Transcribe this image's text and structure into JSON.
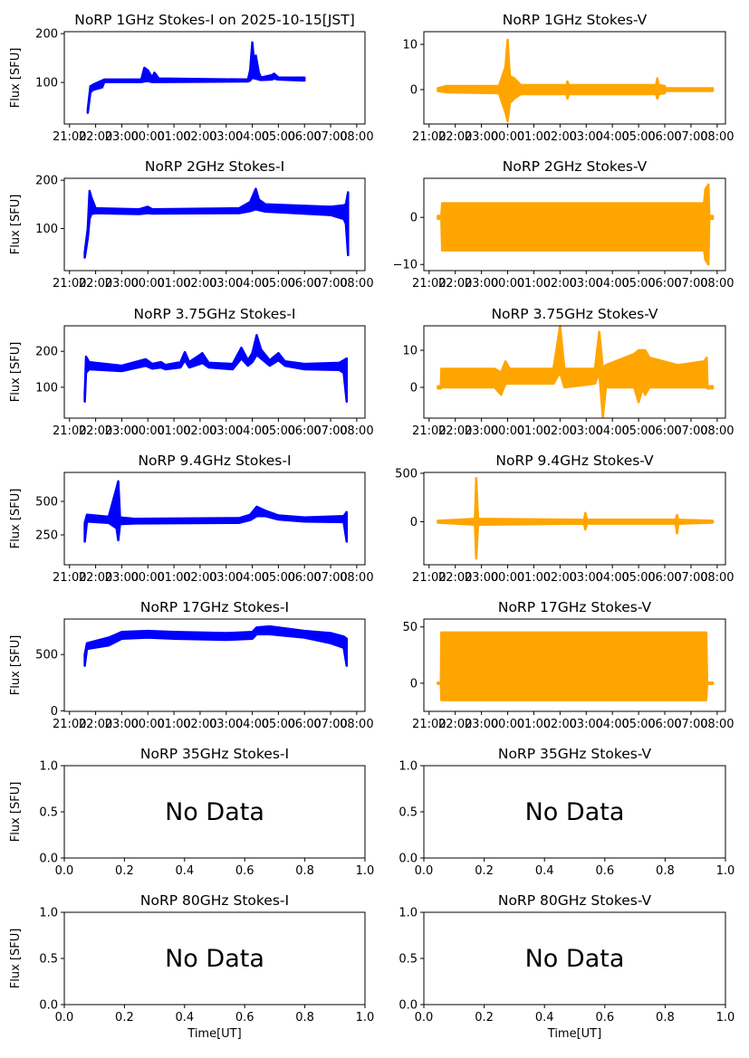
{
  "chart_data": [
    {
      "type": "scatter",
      "title": "NoRP 1GHz Stokes-I on 2025-10-15[JST]",
      "ylabel": "Flux [SFU]",
      "xlabel": "",
      "color": "#0000ff",
      "xlim": [
        "20:48",
        "08:19"
      ],
      "ylim": [
        15,
        204
      ],
      "yticks": [
        "100",
        "200"
      ],
      "ytick_values": [
        100,
        200
      ],
      "xticks": [
        "21:00",
        "22:00",
        "23:00",
        "00:00",
        "01:00",
        "02:00",
        "03:00",
        "04:00",
        "05:00",
        "06:00",
        "07:00",
        "08:00"
      ],
      "envelope": [
        [
          "21:42",
          38,
          44
        ],
        [
          "21:48",
          80,
          92
        ],
        [
          "21:55",
          85,
          96
        ],
        [
          "22:15",
          90,
          104
        ],
        [
          "22:20",
          101,
          106
        ],
        [
          "23:45",
          101,
          106
        ],
        [
          "23:52",
          102,
          130
        ],
        [
          "00:00",
          103,
          125
        ],
        [
          "00:10",
          101,
          110
        ],
        [
          "00:15",
          101,
          120
        ],
        [
          "00:25",
          101,
          108
        ],
        [
          "03:50",
          102,
          106
        ],
        [
          "03:55",
          104,
          125
        ],
        [
          "04:00",
          110,
          182
        ],
        [
          "04:05",
          108,
          130
        ],
        [
          "04:08",
          108,
          155
        ],
        [
          "04:15",
          106,
          120
        ],
        [
          "04:20",
          105,
          110
        ],
        [
          "04:45",
          106,
          115
        ],
        [
          "04:50",
          108,
          118
        ],
        [
          "05:00",
          106,
          110
        ],
        [
          "06:00",
          104,
          110
        ]
      ]
    },
    {
      "type": "scatter",
      "title": "NoRP 1GHz Stokes-V",
      "ylabel": "",
      "xlabel": "",
      "color": "#ffa500",
      "xlim": [
        "20:48",
        "08:19"
      ],
      "ylim": [
        -7.6,
        12.8
      ],
      "yticks": [
        "0",
        "10"
      ],
      "ytick_values": [
        0,
        10
      ],
      "xticks": [
        "21:00",
        "22:00",
        "23:00",
        "00:00",
        "01:00",
        "02:00",
        "03:00",
        "04:00",
        "05:00",
        "06:00",
        "07:00",
        "08:00"
      ],
      "envelope": [
        [
          "21:20",
          -0.3,
          0.3
        ],
        [
          "21:40",
          -0.6,
          0.8
        ],
        [
          "23:40",
          -0.8,
          0.8
        ],
        [
          "23:55",
          -5,
          5
        ],
        [
          "00:00",
          -7,
          11
        ],
        [
          "00:05",
          -3,
          3
        ],
        [
          "00:15",
          -2,
          2.5
        ],
        [
          "00:30",
          -1,
          1
        ],
        [
          "02:15",
          -1,
          1
        ],
        [
          "02:17",
          -2,
          1.8
        ],
        [
          "02:20",
          -1,
          1
        ],
        [
          "05:40",
          -1,
          1
        ],
        [
          "05:43",
          -2,
          2.5
        ],
        [
          "05:46",
          -1,
          1
        ],
        [
          "06:00",
          -0.8,
          0.8
        ],
        [
          "06:01",
          -0.3,
          0.3
        ],
        [
          "07:50",
          -0.3,
          0.3
        ]
      ]
    },
    {
      "type": "scatter",
      "title": "NoRP 2GHz Stokes-I",
      "ylabel": "Flux [SFU]",
      "xlabel": "",
      "color": "#0000ff",
      "xlim": [
        "20:48",
        "08:19"
      ],
      "ylim": [
        13,
        204
      ],
      "yticks": [
        "100",
        "200"
      ],
      "ytick_values": [
        100,
        200
      ],
      "xticks": [
        "21:00",
        "22:00",
        "23:00",
        "00:00",
        "01:00",
        "02:00",
        "03:00",
        "04:00",
        "05:00",
        "06:00",
        "07:00",
        "08:00"
      ],
      "envelope": [
        [
          "21:35",
          40,
          50
        ],
        [
          "21:42",
          80,
          100
        ],
        [
          "21:46",
          120,
          178
        ],
        [
          "21:50",
          130,
          165
        ],
        [
          "22:00",
          132,
          142
        ],
        [
          "23:40",
          130,
          140
        ],
        [
          "00:00",
          132,
          145
        ],
        [
          "00:10",
          131,
          140
        ],
        [
          "03:30",
          132,
          142
        ],
        [
          "03:55",
          136,
          155
        ],
        [
          "04:08",
          140,
          182
        ],
        [
          "04:15",
          138,
          160
        ],
        [
          "04:30",
          135,
          150
        ],
        [
          "07:00",
          128,
          145
        ],
        [
          "07:30",
          120,
          148
        ],
        [
          "07:35",
          110,
          150
        ],
        [
          "07:40",
          45,
          175
        ]
      ]
    },
    {
      "type": "scatter",
      "title": "NoRP 2GHz Stokes-V",
      "ylabel": "",
      "xlabel": "",
      "color": "#ffa500",
      "xlim": [
        "20:48",
        "08:19"
      ],
      "ylim": [
        -11.3,
        8.3
      ],
      "yticks": [
        "−10",
        "0"
      ],
      "ytick_values": [
        -10,
        0
      ],
      "xticks": [
        "21:00",
        "22:00",
        "23:00",
        "00:00",
        "01:00",
        "02:00",
        "03:00",
        "04:00",
        "05:00",
        "06:00",
        "07:00",
        "08:00"
      ],
      "envelope": [
        [
          "21:20",
          -0.3,
          0.3
        ],
        [
          "21:28",
          -0.3,
          0.3
        ],
        [
          "21:30",
          -7,
          3
        ],
        [
          "07:30",
          -7,
          3
        ],
        [
          "07:33",
          -9,
          6
        ],
        [
          "07:40",
          -10,
          7
        ],
        [
          "07:42",
          -0.3,
          0.3
        ],
        [
          "07:50",
          -0.3,
          0.3
        ]
      ]
    },
    {
      "type": "scatter",
      "title": "NoRP 3.75GHz Stokes-I",
      "ylabel": "Flux [SFU]",
      "xlabel": "",
      "color": "#0000ff",
      "xlim": [
        "20:48",
        "08:19"
      ],
      "ylim": [
        14,
        271
      ],
      "yticks": [
        "100",
        "200"
      ],
      "ytick_values": [
        100,
        200
      ],
      "xticks": [
        "21:00",
        "22:00",
        "23:00",
        "00:00",
        "01:00",
        "02:00",
        "03:00",
        "04:00",
        "05:00",
        "06:00",
        "07:00",
        "08:00"
      ],
      "envelope": [
        [
          "21:35",
          60,
          80
        ],
        [
          "21:38",
          140,
          185
        ],
        [
          "21:45",
          150,
          170
        ],
        [
          "23:00",
          145,
          160
        ],
        [
          "23:55",
          160,
          178
        ],
        [
          "00:10",
          152,
          165
        ],
        [
          "00:30",
          155,
          170
        ],
        [
          "00:40",
          150,
          162
        ],
        [
          "01:15",
          155,
          170
        ],
        [
          "01:25",
          175,
          198
        ],
        [
          "01:35",
          155,
          170
        ],
        [
          "02:00",
          165,
          190
        ],
        [
          "02:05",
          168,
          195
        ],
        [
          "02:20",
          155,
          168
        ],
        [
          "03:15",
          150,
          165
        ],
        [
          "03:35",
          180,
          210
        ],
        [
          "03:50",
          160,
          175
        ],
        [
          "04:00",
          170,
          195
        ],
        [
          "04:10",
          190,
          245
        ],
        [
          "04:20",
          180,
          205
        ],
        [
          "04:40",
          160,
          175
        ],
        [
          "05:00",
          175,
          195
        ],
        [
          "05:15",
          160,
          172
        ],
        [
          "06:00",
          150,
          165
        ],
        [
          "07:20",
          148,
          168
        ],
        [
          "07:30",
          140,
          175
        ],
        [
          "07:37",
          60,
          180
        ]
      ]
    },
    {
      "type": "scatter",
      "title": "NoRP 3.75GHz Stokes-V",
      "ylabel": "",
      "xlabel": "",
      "color": "#ffa500",
      "xlim": [
        "20:48",
        "08:19"
      ],
      "ylim": [
        -8.3,
        16.6
      ],
      "yticks": [
        "0",
        "10"
      ],
      "ytick_values": [
        0,
        10
      ],
      "xticks": [
        "21:00",
        "22:00",
        "23:00",
        "00:00",
        "01:00",
        "02:00",
        "03:00",
        "04:00",
        "05:00",
        "06:00",
        "07:00",
        "08:00"
      ],
      "envelope": [
        [
          "21:20",
          -0.3,
          0.3
        ],
        [
          "21:27",
          -0.3,
          0.3
        ],
        [
          "21:28",
          0,
          5
        ],
        [
          "23:30",
          0,
          5
        ],
        [
          "23:45",
          -2,
          4
        ],
        [
          "23:55",
          1,
          7
        ],
        [
          "00:05",
          1,
          5
        ],
        [
          "01:45",
          1,
          5
        ],
        [
          "02:00",
          4,
          16.5
        ],
        [
          "02:10",
          0,
          5
        ],
        [
          "03:20",
          1,
          5
        ],
        [
          "03:30",
          4,
          15
        ],
        [
          "03:38",
          -8,
          5
        ],
        [
          "03:45",
          0,
          6
        ],
        [
          "04:50",
          0,
          9
        ],
        [
          "05:00",
          -4,
          10
        ],
        [
          "05:10",
          0,
          10
        ],
        [
          "05:15",
          -2,
          10
        ],
        [
          "05:25",
          0,
          8
        ],
        [
          "06:30",
          0,
          6
        ],
        [
          "07:30",
          0,
          7
        ],
        [
          "07:36",
          0,
          8
        ],
        [
          "07:38",
          -0.3,
          0.3
        ],
        [
          "07:50",
          -0.3,
          0.3
        ]
      ]
    },
    {
      "type": "scatter",
      "title": "NoRP 9.4GHz Stokes-I",
      "ylabel": "Flux [SFU]",
      "xlabel": "",
      "color": "#0000ff",
      "xlim": [
        "20:48",
        "08:19"
      ],
      "ylim": [
        27,
        716
      ],
      "yticks": [
        "250",
        "500"
      ],
      "ytick_values": [
        250,
        500
      ],
      "xticks": [
        "21:00",
        "22:00",
        "23:00",
        "00:00",
        "01:00",
        "02:00",
        "03:00",
        "04:00",
        "05:00",
        "06:00",
        "07:00",
        "08:00"
      ],
      "envelope": [
        [
          "21:35",
          200,
          340
        ],
        [
          "21:40",
          350,
          400
        ],
        [
          "22:30",
          340,
          385
        ],
        [
          "22:48",
          300,
          600
        ],
        [
          "22:52",
          210,
          650
        ],
        [
          "22:56",
          330,
          380
        ],
        [
          "23:30",
          335,
          370
        ],
        [
          "03:30",
          340,
          375
        ],
        [
          "03:55",
          360,
          400
        ],
        [
          "04:10",
          390,
          460
        ],
        [
          "04:30",
          390,
          430
        ],
        [
          "05:00",
          365,
          395
        ],
        [
          "06:00",
          350,
          380
        ],
        [
          "07:30",
          345,
          390
        ],
        [
          "07:37",
          200,
          420
        ]
      ]
    },
    {
      "type": "scatter",
      "title": "NoRP 9.4GHz Stokes-V",
      "ylabel": "",
      "xlabel": "",
      "color": "#ffa500",
      "xlim": [
        "20:48",
        "08:19"
      ],
      "ylim": [
        -444,
        509
      ],
      "yticks": [
        "0",
        "500"
      ],
      "ytick_values": [
        0,
        500
      ],
      "xticks": [
        "21:00",
        "22:00",
        "23:00",
        "00:00",
        "01:00",
        "02:00",
        "03:00",
        "04:00",
        "05:00",
        "06:00",
        "07:00",
        "08:00"
      ],
      "envelope": [
        [
          "21:20",
          -10,
          10
        ],
        [
          "22:45",
          -30,
          30
        ],
        [
          "22:48",
          -380,
          450
        ],
        [
          "22:52",
          -30,
          30
        ],
        [
          "02:55",
          -20,
          20
        ],
        [
          "02:58",
          -80,
          90
        ],
        [
          "03:02",
          -20,
          20
        ],
        [
          "06:25",
          -20,
          20
        ],
        [
          "06:28",
          -120,
          70
        ],
        [
          "06:31",
          -20,
          20
        ],
        [
          "07:50",
          -10,
          10
        ]
      ]
    },
    {
      "type": "scatter",
      "title": "NoRP 17GHz Stokes-I",
      "ylabel": "Flux [SFU]",
      "xlabel": "",
      "color": "#0000ff",
      "xlim": [
        "20:48",
        "08:19"
      ],
      "ylim": [
        -5,
        815
      ],
      "yticks": [
        "0",
        "500"
      ],
      "ytick_values": [
        0,
        500
      ],
      "xticks": [
        "21:00",
        "22:00",
        "23:00",
        "00:00",
        "01:00",
        "02:00",
        "03:00",
        "04:00",
        "05:00",
        "06:00",
        "07:00",
        "08:00"
      ],
      "envelope": [
        [
          "21:35",
          400,
          500
        ],
        [
          "21:40",
          550,
          600
        ],
        [
          "22:30",
          580,
          650
        ],
        [
          "23:00",
          640,
          700
        ],
        [
          "00:00",
          650,
          710
        ],
        [
          "01:00",
          640,
          700
        ],
        [
          "03:00",
          630,
          690
        ],
        [
          "04:00",
          640,
          700
        ],
        [
          "04:10",
          680,
          740
        ],
        [
          "04:40",
          680,
          750
        ],
        [
          "06:00",
          650,
          710
        ],
        [
          "07:00",
          600,
          690
        ],
        [
          "07:30",
          560,
          660
        ],
        [
          "07:37",
          400,
          640
        ]
      ]
    },
    {
      "type": "scatter",
      "title": "NoRP 17GHz Stokes-V",
      "ylabel": "",
      "xlabel": "",
      "color": "#ffa500",
      "xlim": [
        "20:48",
        "08:19"
      ],
      "ylim": [
        -25,
        57
      ],
      "yticks": [
        "0",
        "50"
      ],
      "ytick_values": [
        0,
        50
      ],
      "xticks": [
        "21:00",
        "22:00",
        "23:00",
        "00:00",
        "01:00",
        "02:00",
        "03:00",
        "04:00",
        "05:00",
        "06:00",
        "07:00",
        "08:00"
      ],
      "envelope": [
        [
          "21:20",
          -0.6,
          0.6
        ],
        [
          "21:27",
          -0.6,
          0.6
        ],
        [
          "21:28",
          -15,
          45
        ],
        [
          "07:35",
          -15,
          45
        ],
        [
          "07:37",
          -0.6,
          0.6
        ],
        [
          "07:50",
          -0.6,
          0.6
        ]
      ]
    },
    {
      "type": "empty",
      "title": "NoRP 35GHz Stokes-I",
      "ylabel": "Flux [SFU]",
      "xlabel": "",
      "message": "No Data",
      "xlim": [
        0,
        1
      ],
      "ylim": [
        0,
        1
      ],
      "yticks": [
        "0.0",
        "0.5",
        "1.0"
      ],
      "ytick_values": [
        0,
        0.5,
        1
      ],
      "xticks": [
        "0.0",
        "0.2",
        "0.4",
        "0.6",
        "0.8",
        "1.0"
      ],
      "xtick_values": [
        0,
        0.2,
        0.4,
        0.6,
        0.8,
        1
      ]
    },
    {
      "type": "empty",
      "title": "NoRP 35GHz Stokes-V",
      "ylabel": "",
      "xlabel": "",
      "message": "No Data",
      "xlim": [
        0,
        1
      ],
      "ylim": [
        0,
        1
      ],
      "yticks": [
        "0.0",
        "0.5",
        "1.0"
      ],
      "ytick_values": [
        0,
        0.5,
        1
      ],
      "xticks": [
        "0.0",
        "0.2",
        "0.4",
        "0.6",
        "0.8",
        "1.0"
      ],
      "xtick_values": [
        0,
        0.2,
        0.4,
        0.6,
        0.8,
        1
      ]
    },
    {
      "type": "empty",
      "title": "NoRP 80GHz Stokes-I",
      "ylabel": "Flux [SFU]",
      "xlabel": "Time[UT]",
      "message": "No Data",
      "xlim": [
        0,
        1
      ],
      "ylim": [
        0,
        1
      ],
      "yticks": [
        "0.0",
        "0.5",
        "1.0"
      ],
      "ytick_values": [
        0,
        0.5,
        1
      ],
      "xticks": [
        "0.0",
        "0.2",
        "0.4",
        "0.6",
        "0.8",
        "1.0"
      ],
      "xtick_values": [
        0,
        0.2,
        0.4,
        0.6,
        0.8,
        1
      ]
    },
    {
      "type": "empty",
      "title": "NoRP 80GHz Stokes-V",
      "ylabel": "",
      "xlabel": "Time[UT]",
      "message": "No Data",
      "xlim": [
        0,
        1
      ],
      "ylim": [
        0,
        1
      ],
      "yticks": [
        "0.0",
        "0.5",
        "1.0"
      ],
      "ytick_values": [
        0,
        0.5,
        1
      ],
      "xticks": [
        "0.0",
        "0.2",
        "0.4",
        "0.6",
        "0.8",
        "1.0"
      ],
      "xtick_values": [
        0,
        0.2,
        0.4,
        0.6,
        0.8,
        1
      ]
    }
  ]
}
